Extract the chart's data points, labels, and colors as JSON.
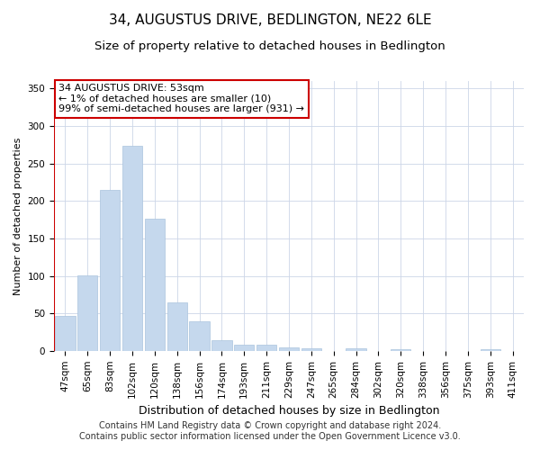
{
  "title": "34, AUGUSTUS DRIVE, BEDLINGTON, NE22 6LE",
  "subtitle": "Size of property relative to detached houses in Bedlington",
  "xlabel": "Distribution of detached houses by size in Bedlington",
  "ylabel": "Number of detached properties",
  "categories": [
    "47sqm",
    "65sqm",
    "83sqm",
    "102sqm",
    "120sqm",
    "138sqm",
    "156sqm",
    "174sqm",
    "193sqm",
    "211sqm",
    "229sqm",
    "247sqm",
    "265sqm",
    "284sqm",
    "302sqm",
    "320sqm",
    "338sqm",
    "356sqm",
    "375sqm",
    "393sqm",
    "411sqm"
  ],
  "values": [
    47,
    101,
    215,
    274,
    176,
    65,
    40,
    14,
    8,
    9,
    5,
    4,
    0,
    4,
    0,
    3,
    0,
    0,
    0,
    3,
    0
  ],
  "bar_color": "#c5d8ed",
  "bar_edge_color": "#aac4dd",
  "annotation_box_text": "34 AUGUSTUS DRIVE: 53sqm\n← 1% of detached houses are smaller (10)\n99% of semi-detached houses are larger (931) →",
  "annotation_box_color": "#cc0000",
  "annotation_box_fill": "#ffffff",
  "ylim": [
    0,
    360
  ],
  "yticks": [
    0,
    50,
    100,
    150,
    200,
    250,
    300,
    350
  ],
  "footer_text": "Contains HM Land Registry data © Crown copyright and database right 2024.\nContains public sector information licensed under the Open Government Licence v3.0.",
  "background_color": "#ffffff",
  "grid_color": "#ccd6e8",
  "title_fontsize": 11,
  "subtitle_fontsize": 9.5,
  "xlabel_fontsize": 9,
  "ylabel_fontsize": 8,
  "tick_fontsize": 7.5,
  "footer_fontsize": 7
}
